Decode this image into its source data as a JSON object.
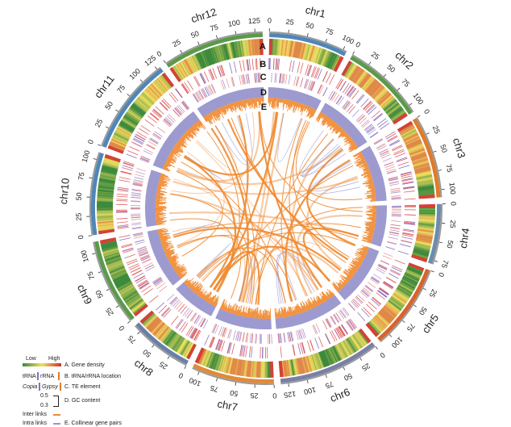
{
  "chromosomes": [
    {
      "name": "chr1",
      "length": 105,
      "color": "#4f86b8",
      "ticks": [
        0,
        25,
        50,
        75,
        100
      ]
    },
    {
      "name": "chr2",
      "length": 110,
      "color": "#5a9a4a",
      "ticks": [
        0,
        25,
        50,
        75,
        100
      ]
    },
    {
      "name": "chr3",
      "length": 110,
      "color": "#e07b2a",
      "ticks": [
        0,
        25,
        50,
        75,
        100
      ]
    },
    {
      "name": "chr4",
      "length": 80,
      "color": "#6a8caf",
      "ticks": [
        0,
        25,
        50,
        75
      ]
    },
    {
      "name": "chr5",
      "length": 115,
      "color": "#d9632a",
      "ticks": [
        0,
        25,
        50,
        75,
        100
      ]
    },
    {
      "name": "chr6",
      "length": 135,
      "color": "#7a7fa8",
      "ticks": [
        0,
        25,
        50,
        75,
        100,
        125
      ]
    },
    {
      "name": "chr7",
      "length": 110,
      "color": "#e08a3a",
      "ticks": [
        0,
        25,
        50,
        75,
        100
      ]
    },
    {
      "name": "chr8",
      "length": 85,
      "color": "#6a7fa8",
      "ticks": [
        0,
        25,
        50,
        75
      ]
    },
    {
      "name": "chr9",
      "length": 115,
      "color": "#5a9a4a",
      "ticks": [
        0,
        25,
        50,
        75,
        100
      ]
    },
    {
      "name": "chr10",
      "length": 110,
      "color": "#4f86b8",
      "ticks": [
        0,
        25,
        50,
        75,
        100
      ]
    },
    {
      "name": "chr11",
      "length": 130,
      "color": "#4f86b8",
      "ticks": [
        0,
        25,
        50,
        75,
        100,
        125
      ]
    },
    {
      "name": "chr12",
      "length": 135,
      "color": "#5a9a4a",
      "ticks": [
        0,
        25,
        50,
        75,
        100,
        125
      ]
    }
  ],
  "track_labels": [
    "A",
    "B",
    "C",
    "D",
    "E"
  ],
  "colors": {
    "inter_links": "#f08a30",
    "intra_links": "#9b95cc",
    "gc": "#9d9ad0",
    "te_copia": "#8a6fc0",
    "te_gypsy": "#e07070"
  },
  "legend": {
    "low": "Low",
    "high": "High",
    "a": "A. Gene density",
    "trna": "tRNA",
    "rrna": "rRNA",
    "b": "B. tRNA/rRNA location",
    "copia": "Copia",
    "gypsy": "Gypsy",
    "c": "C. TE element",
    "gc_high": "0.5",
    "gc_low": "0.3",
    "d": "D. GC content",
    "inter": "Inter links",
    "intra": "Intra links",
    "e": "E. Collinear gene pairs"
  }
}
